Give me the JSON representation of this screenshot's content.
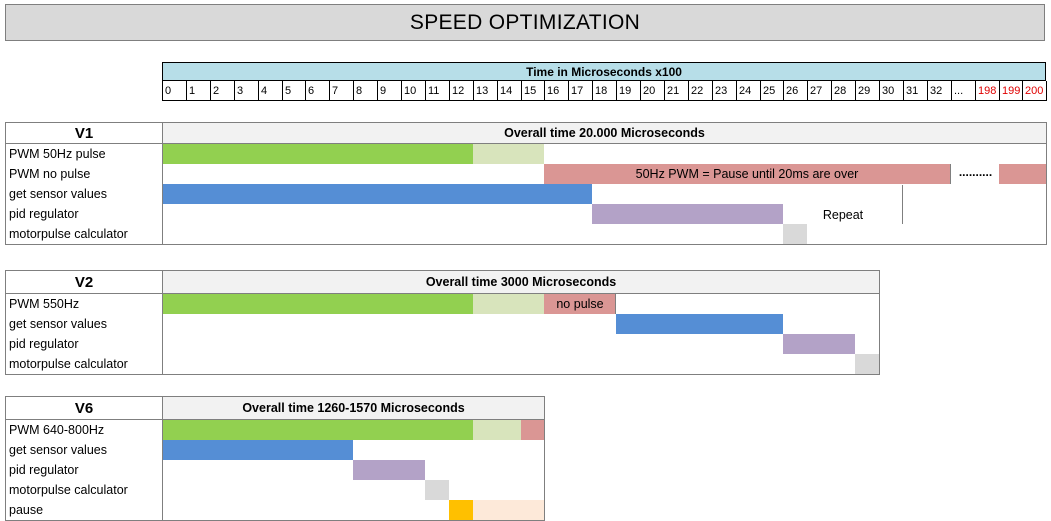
{
  "title": "SPEED OPTIMIZATION",
  "axis_title": "Time in Microseconds x100",
  "ticks": [
    "0",
    "1",
    "2",
    "3",
    "4",
    "5",
    "6",
    "7",
    "8",
    "9",
    "10",
    "11",
    "12",
    "13",
    "14",
    "15",
    "16",
    "17",
    "18",
    "19",
    "20",
    "21",
    "22",
    "23",
    "24",
    "25",
    "26",
    "27",
    "28",
    "29",
    "30",
    "31",
    "32",
    "...",
    "198",
    "199",
    "200"
  ],
  "red_ticks": [
    "198",
    "199",
    "200"
  ],
  "colors": {
    "green": "#92d050",
    "light_green": "#d8e4bc",
    "blue": "#558ed5",
    "purple": "#b3a2c7",
    "red": "#da9694",
    "gray": "#d9d9d9",
    "orange": "#ffc000",
    "peach": "#fde9d9"
  },
  "sections": [
    {
      "name": "V1",
      "overall": "Overall time 20.000 Microseconds",
      "rows": [
        {
          "label": "PWM 50Hz pulse"
        },
        {
          "label": "PWM no pulse",
          "text": "50Hz PWM = Pause until 20ms are over",
          "dots": ".........."
        },
        {
          "label": "get sensor values"
        },
        {
          "label": "pid regulator",
          "text": "Repeat"
        },
        {
          "label": "motorpulse calculator"
        }
      ]
    },
    {
      "name": "V2",
      "overall": "Overall time 3000 Microseconds",
      "rows": [
        {
          "label": "PWM 550Hz",
          "text": "no pulse"
        },
        {
          "label": "get sensor values"
        },
        {
          "label": "pid regulator"
        },
        {
          "label": "motorpulse calculator"
        }
      ]
    },
    {
      "name": "V6",
      "overall": "Overall time 1260-1570 Microseconds",
      "rows": [
        {
          "label": "PWM 640-800Hz"
        },
        {
          "label": "get sensor values"
        },
        {
          "label": "pid regulator"
        },
        {
          "label": "motorpulse calculator"
        },
        {
          "label": "pause"
        }
      ]
    }
  ],
  "chart_data": {
    "type": "table",
    "x_unit": "Microseconds x100",
    "sections": [
      {
        "name": "V1",
        "bars": [
          {
            "row": "PWM 50Hz pulse",
            "from": 0,
            "to": 13,
            "color": "green"
          },
          {
            "row": "PWM 50Hz pulse",
            "from": 13,
            "to": 16,
            "color": "light_green"
          },
          {
            "row": "PWM no pulse",
            "from": 16,
            "to": 200,
            "color": "red"
          },
          {
            "row": "get sensor values",
            "from": 0,
            "to": 18,
            "color": "blue"
          },
          {
            "row": "pid regulator",
            "from": 18,
            "to": 26,
            "color": "purple"
          },
          {
            "row": "motorpulse calculator",
            "from": 26,
            "to": 27,
            "color": "gray"
          }
        ]
      },
      {
        "name": "V2",
        "bars": [
          {
            "row": "PWM 550Hz",
            "from": 0,
            "to": 13,
            "color": "green"
          },
          {
            "row": "PWM 550Hz",
            "from": 13,
            "to": 16,
            "color": "light_green"
          },
          {
            "row": "PWM 550Hz",
            "from": 16,
            "to": 19,
            "color": "red"
          },
          {
            "row": "get sensor values",
            "from": 19,
            "to": 26,
            "color": "blue"
          },
          {
            "row": "pid regulator",
            "from": 26,
            "to": 29,
            "color": "purple"
          },
          {
            "row": "motorpulse calculator",
            "from": 29,
            "to": 30,
            "color": "gray"
          }
        ]
      },
      {
        "name": "V6",
        "bars": [
          {
            "row": "PWM 640-800Hz",
            "from": 0,
            "to": 13,
            "color": "green"
          },
          {
            "row": "PWM 640-800Hz",
            "from": 13,
            "to": 15,
            "color": "light_green"
          },
          {
            "row": "PWM 640-800Hz",
            "from": 15,
            "to": 16,
            "color": "red"
          },
          {
            "row": "get sensor values",
            "from": 0,
            "to": 8,
            "color": "blue"
          },
          {
            "row": "pid regulator",
            "from": 8,
            "to": 11,
            "color": "purple"
          },
          {
            "row": "motorpulse calculator",
            "from": 11,
            "to": 12,
            "color": "gray"
          },
          {
            "row": "pause",
            "from": 12,
            "to": 13,
            "color": "orange"
          },
          {
            "row": "pause",
            "from": 13,
            "to": 16,
            "color": "peach"
          }
        ]
      }
    ]
  }
}
